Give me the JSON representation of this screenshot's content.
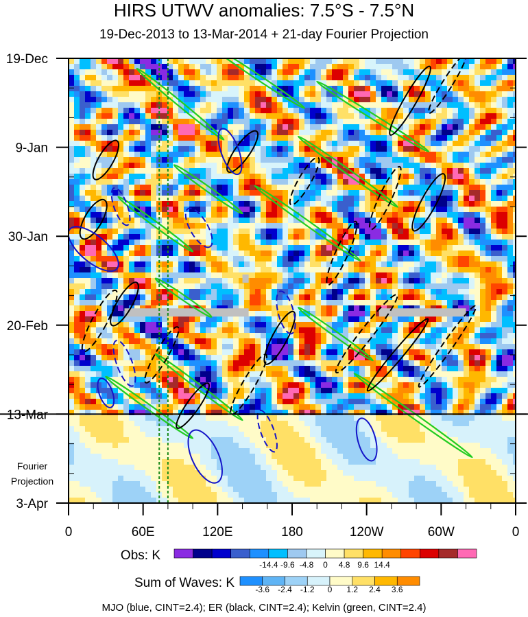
{
  "chart_data": {
    "type": "heatmap",
    "title": "HIRS UTWV anomalies: 7.5°S - 7.5°N",
    "subtitle": "19-Dec-2013 to 13-Mar-2014 + 21-day Fourier Projection",
    "x_ticks": [
      "0",
      "60E",
      "120E",
      "180",
      "120W",
      "60W",
      "0"
    ],
    "x_tick_lons": [
      0,
      60,
      120,
      180,
      240,
      300,
      360
    ],
    "y_ticks": [
      "19-Dec",
      "9-Jan",
      "30-Jan",
      "20-Feb",
      "13-Mar",
      "3-Apr"
    ],
    "y_tick_days": [
      0,
      21,
      42,
      63,
      84,
      105
    ],
    "observation_end_day": 84,
    "fourier_label_lines": [
      "Fourier",
      "Projection"
    ],
    "vertical_dotted_lons": [
      73,
      80
    ],
    "legend_obs": {
      "label": "Obs: K",
      "tick_labels": [
        "-14.4",
        "-9.6",
        "-4.8",
        "0",
        "4.8",
        "9.6",
        "14.4"
      ],
      "colors": [
        "#8a2be2",
        "#00008b",
        "#0000cd",
        "#3a5fcd",
        "#1e90ff",
        "#00bfff",
        "#9ec9f0",
        "#d8f4fb",
        "#fffbc8",
        "#ffe066",
        "#ffb800",
        "#ff8c00",
        "#ff4500",
        "#dc0000",
        "#a52a2a",
        "#ff69b4"
      ]
    },
    "legend_waves": {
      "label": "Sum of Waves: K",
      "tick_labels": [
        "-3.6",
        "-2.4",
        "-1.2",
        "0",
        "1.2",
        "2.4",
        "3.6"
      ],
      "colors": [
        "#1e90ff",
        "#5fb4f5",
        "#9dd2f7",
        "#d7f2fb",
        "#fffbc8",
        "#ffe066",
        "#ffb800",
        "#ff8c00"
      ]
    },
    "footnote": "MJO (blue, CINT=2.4); ER (black, CINT=2.4); Kelvin (green, CINT=2.4)",
    "contour_colors": {
      "mjo": "#1414c8",
      "er": "#000000",
      "kelvin": "#22cc22"
    },
    "kelvin_bands": [
      {
        "lon": 115,
        "day": 2,
        "len": 75,
        "slope": 3.2
      },
      {
        "lon": 55,
        "day": 8,
        "len": 70,
        "slope": 2.6
      },
      {
        "lon": 200,
        "day": 11,
        "len": 90,
        "slope": 3.4
      },
      {
        "lon": 185,
        "day": 24,
        "len": 80,
        "slope": 3.0
      },
      {
        "lon": 85,
        "day": 29,
        "len": 55,
        "slope": 3.0
      },
      {
        "lon": 40,
        "day": 37,
        "len": 60,
        "slope": 2.9
      },
      {
        "lon": 150,
        "day": 36,
        "len": 85,
        "slope": 3.0
      },
      {
        "lon": 70,
        "day": 55,
        "len": 45,
        "slope": 3.1
      },
      {
        "lon": 185,
        "day": 63,
        "len": 60,
        "slope": 3.0
      },
      {
        "lon": 70,
        "day": 75,
        "len": 70,
        "slope": 2.8
      },
      {
        "lon": 230,
        "day": 81,
        "len": 95,
        "slope": 3.0
      },
      {
        "lon": 30,
        "day": 80,
        "len": 70,
        "slope": 3.0
      }
    ],
    "er_contours": [
      {
        "lon": 275,
        "day": 10,
        "rx": 5,
        "ry": 32,
        "rot": 30,
        "dash": false
      },
      {
        "lon": 305,
        "day": 6,
        "rx": 4,
        "ry": 28,
        "rot": 32,
        "dash": true
      },
      {
        "lon": 290,
        "day": 34,
        "rx": 6,
        "ry": 26,
        "rot": 28,
        "dash": false
      },
      {
        "lon": 255,
        "day": 33,
        "rx": 5,
        "ry": 28,
        "rot": 25,
        "dash": true
      },
      {
        "lon": 220,
        "day": 46,
        "rx": 5,
        "ry": 28,
        "rot": 24,
        "dash": true
      },
      {
        "lon": 190,
        "day": 29,
        "rx": 5,
        "ry": 22,
        "rot": 30,
        "dash": true
      },
      {
        "lon": 240,
        "day": 65,
        "rx": 5,
        "ry": 40,
        "rot": 38,
        "dash": true
      },
      {
        "lon": 265,
        "day": 70,
        "rx": 4,
        "ry": 38,
        "rot": 40,
        "dash": false
      },
      {
        "lon": 305,
        "day": 68,
        "rx": 4,
        "ry": 40,
        "rot": 35,
        "dash": true
      },
      {
        "lon": 20,
        "day": 38,
        "rx": 7,
        "ry": 18,
        "rot": 30,
        "dash": false
      },
      {
        "lon": 25,
        "day": 62,
        "rx": 6,
        "ry": 28,
        "rot": 28,
        "dash": true
      },
      {
        "lon": 45,
        "day": 58,
        "rx": 6,
        "ry": 20,
        "rot": 30,
        "dash": false
      },
      {
        "lon": 75,
        "day": 70,
        "rx": 5,
        "ry": 26,
        "rot": 30,
        "dash": true
      },
      {
        "lon": 100,
        "day": 82,
        "rx": 5,
        "ry": 22,
        "rot": 35,
        "dash": false
      },
      {
        "lon": 145,
        "day": 77,
        "rx": 5,
        "ry": 28,
        "rot": 30,
        "dash": true
      },
      {
        "lon": 170,
        "day": 66,
        "rx": 6,
        "ry": 24,
        "rot": 28,
        "dash": false
      },
      {
        "lon": 140,
        "day": 22,
        "rx": 6,
        "ry": 20,
        "rot": 35,
        "dash": false
      },
      {
        "lon": 30,
        "day": 24,
        "rx": 6,
        "ry": 18,
        "rot": 30,
        "dash": false
      }
    ],
    "mjo_contours": [
      {
        "lon": 20,
        "day": 45,
        "rx": 28,
        "ry": 12,
        "rot": 40,
        "dash": false
      },
      {
        "lon": 130,
        "day": 22,
        "rx": 22,
        "ry": 8,
        "rot": 70,
        "dash": false
      },
      {
        "lon": 105,
        "day": 40,
        "rx": 20,
        "ry": 8,
        "rot": 60,
        "dash": true
      },
      {
        "lon": 42,
        "day": 35,
        "rx": 18,
        "ry": 6,
        "rot": 70,
        "dash": true
      },
      {
        "lon": 175,
        "day": 60,
        "rx": 20,
        "ry": 7,
        "rot": 75,
        "dash": true
      },
      {
        "lon": 45,
        "day": 72,
        "rx": 22,
        "ry": 7,
        "rot": 70,
        "dash": true
      },
      {
        "lon": 110,
        "day": 94,
        "rx": 26,
        "ry": 12,
        "rot": 65,
        "dash": false
      },
      {
        "lon": 160,
        "day": 88,
        "rx": 20,
        "ry": 6,
        "rot": 70,
        "dash": true
      },
      {
        "lon": 240,
        "day": 90,
        "rx": 20,
        "ry": 8,
        "rot": 75,
        "dash": false
      },
      {
        "lon": 30,
        "day": 79,
        "rx": 14,
        "ry": 6,
        "rot": 70,
        "dash": false
      }
    ],
    "missing_bars": [
      {
        "lon0": 45,
        "lon1": 145,
        "day": 60
      },
      {
        "lon0": 250,
        "lon1": 320,
        "day": 60
      },
      {
        "lon0": 140,
        "lon1": 145,
        "day": 52
      }
    ]
  }
}
